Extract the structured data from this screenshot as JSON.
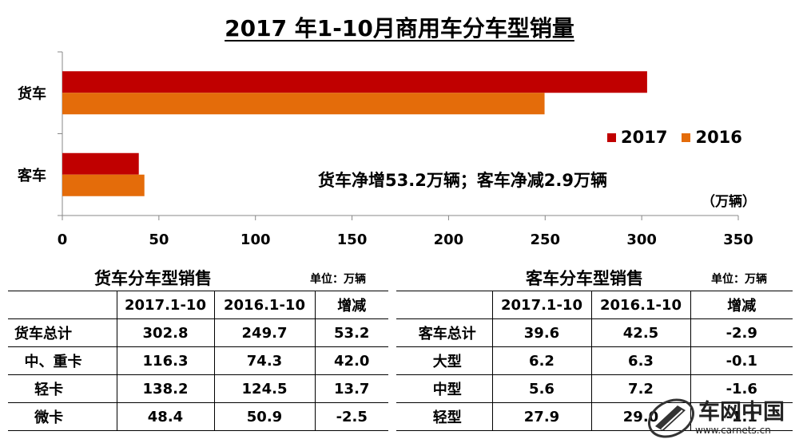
{
  "chart_data": {
    "type": "bar",
    "orientation": "horizontal",
    "title": "2017 年1-10月商用车分车型销量",
    "categories": [
      "货车",
      "客车"
    ],
    "series": [
      {
        "name": "2017",
        "values": [
          302.8,
          39.6
        ],
        "color": "#C00000"
      },
      {
        "name": "2016",
        "values": [
          249.7,
          42.5
        ],
        "color": "#E46C0A"
      }
    ],
    "xlim": [
      0,
      350
    ],
    "xticks": [
      "0",
      "50",
      "100",
      "150",
      "200",
      "250",
      "300",
      "350"
    ],
    "unit": "（万辆）",
    "annotation": "货车净增53.2万辆；客车净减2.9万辆",
    "legend_position": "right"
  },
  "truck_table": {
    "title": "货车分车型销售",
    "unit": "单位：万辆",
    "headers": [
      "",
      "2017.1-10",
      "2016.1-10",
      "增减"
    ],
    "rows": [
      [
        "货车总计",
        "302.8",
        "249.7",
        "53.2"
      ],
      [
        "  中、重卡",
        "116.3",
        "74.3",
        "42.0"
      ],
      [
        "    轻卡",
        "138.2",
        "124.5",
        "13.7"
      ],
      [
        "    微卡",
        "48.4",
        "50.9",
        "-2.5"
      ]
    ]
  },
  "bus_table": {
    "title": "客车分车型销售",
    "unit": "单位：万辆",
    "headers": [
      "",
      "2017.1-10",
      "2016.1-10",
      "增减"
    ],
    "rows": [
      [
        "客车总计",
        "39.6",
        "42.5",
        "-2.9"
      ],
      [
        "大型",
        "6.2",
        "6.3",
        "-0.1"
      ],
      [
        "中型",
        "5.6",
        "7.2",
        "-1.6"
      ],
      [
        "轻型",
        "27.9",
        "29.0",
        "-1.1"
      ]
    ]
  },
  "watermark": {
    "text": "车网中国",
    "url": "www.carnets.cn"
  }
}
